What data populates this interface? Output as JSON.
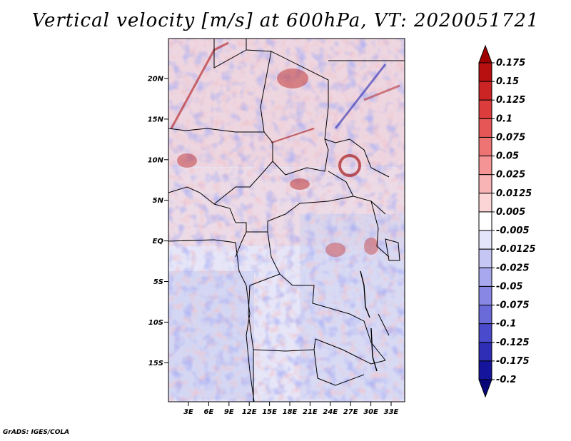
{
  "title": "Vertical velocity [m/s] at 600hPa, VT: 2020051721",
  "footer": "GrADS: IGES/COLA",
  "map": {
    "lat_labels": [
      "20N",
      "15N",
      "10N",
      "5N",
      "EQ",
      "5S",
      "10S",
      "15S"
    ],
    "lon_labels": [
      "3E",
      "6E",
      "9E",
      "12E",
      "15E",
      "18E",
      "21E",
      "24E",
      "27E",
      "30E",
      "33E"
    ]
  },
  "colorbar": {
    "levels": [
      "0.175",
      "0.15",
      "0.125",
      "0.1",
      "0.075",
      "0.05",
      "0.025",
      "0.0125",
      "0.005",
      "-0.005",
      "-0.0125",
      "-0.025",
      "-0.05",
      "-0.075",
      "-0.1",
      "-0.125",
      "-0.175",
      "-0.2"
    ],
    "colors": [
      "#9e0000",
      "#b81010",
      "#cc2424",
      "#dc3c3c",
      "#e65656",
      "#ee7474",
      "#f49494",
      "#f8b4b4",
      "#fcd6d6",
      "#ffffff",
      "#e4e4fa",
      "#c6c6f4",
      "#a8a8ee",
      "#8888e4",
      "#6a6ad8",
      "#4a4acc",
      "#2e2eb6",
      "#14149c",
      "#06067a"
    ]
  }
}
